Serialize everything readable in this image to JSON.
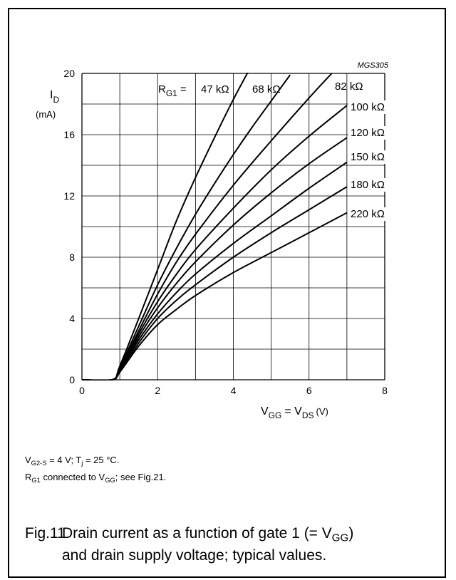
{
  "chart_data": {
    "type": "line",
    "code": "MGS305",
    "ylabel_main": "I",
    "ylabel_sub": "D",
    "yunit": "(mA)",
    "xlabel_v1": "V",
    "xlabel_v1_sub": "GG",
    "xlabel_eq": "= V",
    "xlabel_v2_sub": "DS",
    "xunit": "(V)",
    "xlim": [
      0,
      8
    ],
    "ylim": [
      0,
      20
    ],
    "xticks": [
      "0",
      "2",
      "4",
      "6",
      "8"
    ],
    "yticks": [
      "0",
      "4",
      "8",
      "12",
      "16",
      "20"
    ],
    "grid": true,
    "legend_prefix_main": "R",
    "legend_prefix_sub": "G1",
    "legend_prefix_eq": "=",
    "series": [
      {
        "name": "47 kΩ",
        "x": [
          0,
          0.8,
          1.0,
          1.5,
          2.0,
          2.5,
          3.0,
          3.5,
          4.0,
          4.5
        ],
        "y": [
          0,
          0,
          0.9,
          4.0,
          7.2,
          10.4,
          13.2,
          15.8,
          18.3,
          20.6
        ]
      },
      {
        "name": "68 kΩ",
        "x": [
          0,
          0.8,
          1.0,
          1.5,
          2.0,
          2.5,
          3.0,
          3.5,
          4.0,
          4.5,
          5.0,
          5.5
        ],
        "y": [
          0,
          0,
          0.8,
          3.5,
          6.2,
          8.6,
          10.8,
          12.8,
          14.7,
          16.5,
          18.2,
          19.9
        ]
      },
      {
        "name": "82 kΩ",
        "x": [
          0,
          0.8,
          1.0,
          1.5,
          2.0,
          2.5,
          3.0,
          4.0,
          5.0,
          6.0,
          6.6
        ],
        "y": [
          0,
          0,
          0.7,
          3.2,
          5.6,
          7.7,
          9.5,
          12.7,
          15.6,
          18.4,
          20.0
        ]
      },
      {
        "name": "100 kΩ",
        "x": [
          0,
          0.8,
          1.0,
          1.5,
          2.0,
          2.5,
          3.0,
          4.0,
          5.0,
          6.0,
          7.0
        ],
        "y": [
          0,
          0,
          0.7,
          3.0,
          5.1,
          6.9,
          8.5,
          11.2,
          13.7,
          15.9,
          17.9
        ]
      },
      {
        "name": "120 kΩ",
        "x": [
          0,
          0.8,
          1.0,
          1.5,
          2.0,
          2.5,
          3.0,
          4.0,
          5.0,
          6.0,
          7.0
        ],
        "y": [
          0,
          0,
          0.6,
          2.8,
          4.7,
          6.3,
          7.7,
          10.1,
          12.2,
          14.1,
          15.8
        ]
      },
      {
        "name": "150 kΩ",
        "x": [
          0,
          0.8,
          1.0,
          1.5,
          2.0,
          2.5,
          3.0,
          4.0,
          5.0,
          6.0,
          7.0
        ],
        "y": [
          0,
          0,
          0.6,
          2.6,
          4.3,
          5.7,
          6.9,
          8.9,
          10.7,
          12.5,
          14.2
        ]
      },
      {
        "name": "180 kΩ",
        "x": [
          0,
          0.8,
          1.0,
          1.5,
          2.0,
          2.5,
          3.0,
          4.0,
          5.0,
          6.0,
          7.0
        ],
        "y": [
          0,
          0,
          0.5,
          2.4,
          4.0,
          5.2,
          6.2,
          8.0,
          9.6,
          11.1,
          12.6
        ]
      },
      {
        "name": "220 kΩ",
        "x": [
          0,
          0.8,
          1.0,
          1.5,
          2.0,
          2.5,
          3.0,
          4.0,
          5.0,
          6.0,
          7.0
        ],
        "y": [
          0,
          0,
          0.5,
          2.2,
          3.6,
          4.6,
          5.5,
          7.0,
          8.3,
          9.6,
          10.9
        ]
      }
    ]
  },
  "conditions": {
    "line1": {
      "a": "V",
      "a_sub": "G2-S",
      "b": " = 4 V; T",
      "b_sub": "j",
      "c": " = 25 °C."
    },
    "line2": {
      "a": "R",
      "a_sub": "G1",
      "b": " connected to V",
      "b_sub": "GG",
      "c": "; see Fig.21."
    }
  },
  "figure": {
    "number": "Fig.11",
    "text1": "Drain current as a function of gate 1 (= V",
    "text1_sub": "GG",
    "text1_end": ")",
    "text2": "and drain supply voltage; typical values."
  }
}
